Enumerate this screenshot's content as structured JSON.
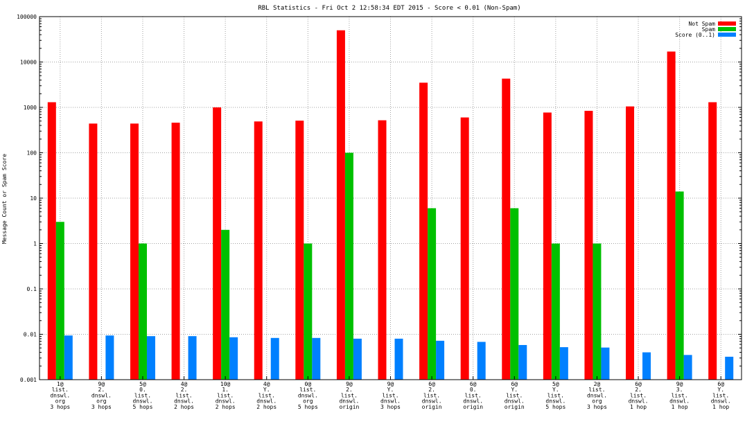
{
  "chart_data": {
    "type": "bar",
    "title": "RBL Statistics - Fri Oct  2 12:58:34 EDT 2015 - Score < 0.01 (Non-Spam)",
    "ylabel": "Message Count or Spam Score",
    "xlabel": "",
    "yscale": "log",
    "ylim": [
      0.001,
      100000
    ],
    "yticks": [
      "0.001",
      "0.01",
      "0.1",
      "1",
      "10",
      "100",
      "1000",
      "10000",
      "100000"
    ],
    "grid": true,
    "legend_position": "top-right",
    "categories": [
      [
        "1@",
        "list.",
        "dnswl.",
        "org",
        "3 hops"
      ],
      [
        "9@",
        "2.",
        "dnswl.",
        "org",
        "3 hops"
      ],
      [
        "5@",
        "0.",
        "list.",
        "dnswl.",
        "5 hops"
      ],
      [
        "4@",
        "2.",
        "list.",
        "dnswl.",
        "2 hops"
      ],
      [
        "10@",
        "1.",
        "list.",
        "dnswl.",
        "2 hops"
      ],
      [
        "4@",
        "Y.",
        "list.",
        "dnswl.",
        "2 hops"
      ],
      [
        "0@",
        "list.",
        "dnswl.",
        "org",
        "5 hops"
      ],
      [
        "9@",
        "2.",
        "list.",
        "dnswl.",
        "origin"
      ],
      [
        "9@",
        "Y.",
        "list.",
        "dnswl.",
        "3 hops"
      ],
      [
        "6@",
        "2.",
        "list.",
        "dnswl.",
        "origin"
      ],
      [
        "6@",
        "0.",
        "list.",
        "dnswl.",
        "origin"
      ],
      [
        "6@",
        "Y.",
        "list.",
        "dnswl.",
        "origin"
      ],
      [
        "5@",
        "Y.",
        "list.",
        "dnswl.",
        "5 hops"
      ],
      [
        "2@",
        "list.",
        "dnswl.",
        "org",
        "3 hops"
      ],
      [
        "6@",
        "2.",
        "list.",
        "dnswl.",
        "1 hop"
      ],
      [
        "9@",
        "3.",
        "list.",
        "dnswl.",
        "1 hop"
      ],
      [
        "6@",
        "Y.",
        "list.",
        "dnswl.",
        "1 hop"
      ]
    ],
    "series": [
      {
        "name": "Not Spam",
        "color": "#ff0000",
        "values": [
          1300,
          440,
          440,
          460,
          1000,
          490,
          510,
          50000,
          520,
          3500,
          600,
          4300,
          770,
          840,
          1050,
          17000,
          1300
        ]
      },
      {
        "name": "Spam",
        "color": "#00c000",
        "values": [
          3,
          null,
          1,
          null,
          2,
          null,
          1,
          100,
          null,
          6,
          null,
          6,
          1,
          1,
          null,
          14,
          null
        ]
      },
      {
        "name": "Score (0..1)",
        "color": "#0080ff",
        "values": [
          0.0094,
          0.0094,
          0.0091,
          0.0091,
          0.0086,
          0.0083,
          0.0083,
          0.008,
          0.008,
          0.0072,
          0.0068,
          0.0058,
          0.0052,
          0.0051,
          0.004,
          0.0035,
          0.0032
        ]
      }
    ]
  }
}
